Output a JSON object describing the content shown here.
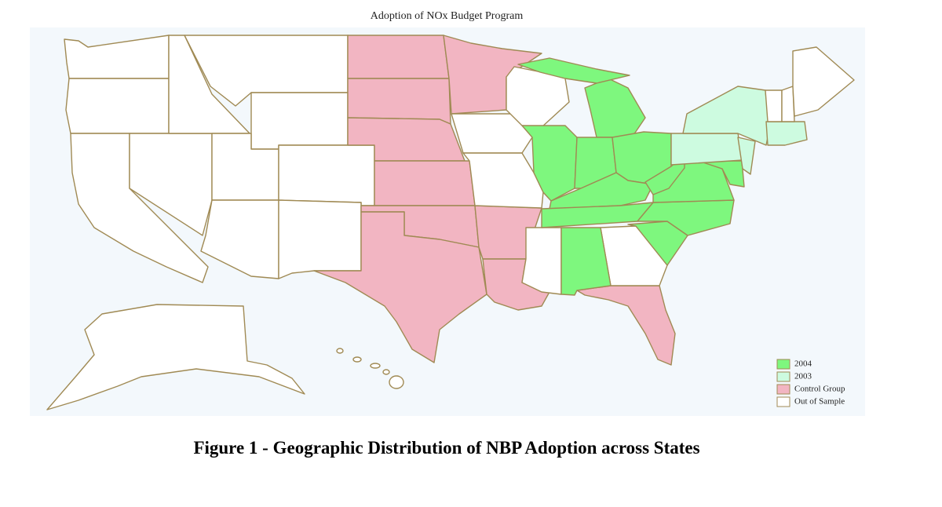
{
  "title": "Adoption of NOx Budget Program",
  "legend": [
    {
      "label": "2004",
      "color": "#7ef77e"
    },
    {
      "label": "2003",
      "color": "#cdfbe0"
    },
    {
      "label": "Control Group",
      "color": "#f2b5c2"
    },
    {
      "label": "Out of Sample",
      "color": "#ffffff"
    }
  ],
  "caption": "Figure 1 - Geographic Distribution of NBP Adoption across States"
}
